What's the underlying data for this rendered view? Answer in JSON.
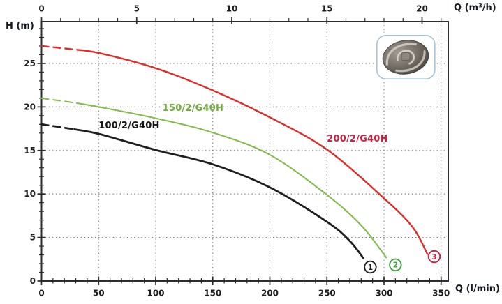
{
  "figure": {
    "background": "#ffffff",
    "frame_color": "#2d2d2d",
    "grid_color": "#7d7d7d",
    "tick_label_color": "#1e1e1e"
  },
  "chart_data": {
    "type": "line",
    "title": "",
    "axes": {
      "bottom": {
        "label": "Q (l/min)",
        "ticks": [
          0,
          50,
          100,
          150,
          200,
          250,
          300,
          350
        ],
        "minor_step": 10,
        "minor_max": 350,
        "range": [
          0,
          356
        ]
      },
      "top": {
        "label": "Q (m³/h)",
        "ticks": [
          0,
          5,
          10,
          15,
          20
        ],
        "minor_step": 1,
        "minor_max": 21,
        "lmin_per_unit": 16.6667,
        "range": [
          0,
          21.3
        ]
      },
      "left": {
        "label": "H (m)",
        "ticks": [
          0,
          5,
          10,
          15,
          20,
          25
        ],
        "minor_step": 1,
        "minor_max": 29,
        "range": [
          0,
          29.8
        ]
      }
    },
    "grid": {
      "style": "dotted",
      "x_values": [
        50,
        100,
        150,
        200,
        250,
        300,
        350
      ],
      "y_values": [
        5,
        10,
        15,
        20,
        25
      ]
    },
    "series": [
      {
        "name": "100/2/G40H",
        "color": "#1f1f1f",
        "label_color": "#141414",
        "stroke_width": 2.8,
        "dash_end_q": 28,
        "points": [
          [
            0,
            18.0
          ],
          [
            25,
            17.5
          ],
          [
            50,
            16.9
          ],
          [
            100,
            15.05
          ],
          [
            150,
            13.4
          ],
          [
            200,
            10.75
          ],
          [
            250,
            6.8
          ],
          [
            270,
            4.6
          ],
          [
            282,
            2.6
          ]
        ],
        "label_pos": {
          "q": 50,
          "h": 18.4
        },
        "marker": {
          "label": "1",
          "q": 288,
          "h": 1.6,
          "color": "#1f1f1f"
        }
      },
      {
        "name": "150/2/G40H",
        "color": "#85ba4e",
        "label_color": "#74ad3d",
        "stroke_width": 2.1,
        "dash_end_q": 31,
        "points": [
          [
            0,
            21.0
          ],
          [
            25,
            20.55
          ],
          [
            50,
            20.0
          ],
          [
            100,
            18.7
          ],
          [
            150,
            17.05
          ],
          [
            200,
            14.5
          ],
          [
            250,
            9.9
          ],
          [
            280,
            6.4
          ],
          [
            302,
            2.7
          ]
        ],
        "label_pos": {
          "q": 106,
          "h": 20.4
        },
        "marker": {
          "label": "2",
          "q": 310,
          "h": 1.85,
          "color": "#3fa43e"
        }
      },
      {
        "name": "200/2/G40H",
        "color": "#dc2d28",
        "label_color": "#cb2140",
        "stroke_width": 2.4,
        "dash_end_q": 34,
        "points": [
          [
            0,
            27.0
          ],
          [
            25,
            26.65
          ],
          [
            50,
            26.2
          ],
          [
            100,
            24.45
          ],
          [
            150,
            21.9
          ],
          [
            200,
            18.8
          ],
          [
            250,
            15.1
          ],
          [
            300,
            9.5
          ],
          [
            325,
            6.2
          ],
          [
            338,
            3.1
          ]
        ],
        "label_pos": {
          "q": 250,
          "h": 16.9
        },
        "marker": {
          "label": "3",
          "q": 344,
          "h": 2.8,
          "color": "#c22845"
        }
      }
    ]
  },
  "badge": {
    "name": "impeller-photo"
  }
}
